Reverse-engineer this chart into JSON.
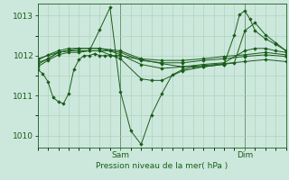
{
  "bg_color": "#cce8dc",
  "grid_color": "#aaccb8",
  "line_color": "#1a5c1a",
  "marker_color": "#1a5c1a",
  "xlabel": "Pression niveau de la mer( hPa )",
  "xlabel_color": "#1a5c1a",
  "tick_color": "#1a5c1a",
  "ylim": [
    1009.7,
    1013.3
  ],
  "yticks": [
    1010,
    1011,
    1012,
    1013
  ],
  "xlim": [
    0,
    48
  ],
  "xtick_positions": [
    16,
    40
  ],
  "xtick_labels": [
    "Sam",
    "Dim"
  ],
  "vlines": [
    16,
    40
  ],
  "series": [
    [
      0,
      1011.65,
      1,
      1011.55,
      2,
      1011.35,
      3,
      1010.95,
      4,
      1010.85,
      5,
      1010.8,
      6,
      1011.05,
      7,
      1011.65,
      8,
      1011.9,
      9,
      1012.0,
      10,
      1012.0,
      11,
      1012.05,
      12,
      1012.0,
      13,
      1012.0,
      14,
      1012.0,
      15,
      1012.0,
      16,
      1012.0,
      20,
      1011.9,
      24,
      1011.8,
      28,
      1011.72,
      32,
      1011.75,
      36,
      1011.8,
      40,
      1011.85,
      44,
      1011.9,
      48,
      1011.85
    ],
    [
      0,
      1011.72,
      2,
      1011.88,
      4,
      1012.02,
      6,
      1012.08,
      8,
      1012.08,
      10,
      1012.12,
      12,
      1012.65,
      14,
      1013.2,
      16,
      1011.1,
      18,
      1010.12,
      20,
      1009.78,
      22,
      1010.52,
      24,
      1011.05,
      26,
      1011.52,
      28,
      1011.65,
      30,
      1011.72,
      32,
      1011.72,
      36,
      1011.78,
      38,
      1012.52,
      39,
      1013.02,
      40,
      1013.12,
      41,
      1012.92,
      42,
      1012.62,
      44,
      1012.42,
      46,
      1012.28,
      48,
      1012.12
    ],
    [
      0,
      1011.78,
      2,
      1011.92,
      4,
      1012.08,
      6,
      1012.12,
      8,
      1012.12,
      10,
      1012.12,
      12,
      1012.12,
      14,
      1012.02,
      16,
      1011.92,
      20,
      1011.42,
      22,
      1011.38,
      24,
      1011.38,
      28,
      1011.62,
      32,
      1011.72,
      36,
      1011.78,
      38,
      1011.82,
      40,
      1012.62,
      42,
      1012.82,
      44,
      1012.52,
      46,
      1012.32,
      48,
      1012.12
    ],
    [
      0,
      1011.82,
      2,
      1011.92,
      4,
      1012.08,
      6,
      1012.12,
      8,
      1012.12,
      10,
      1012.12,
      12,
      1012.12,
      14,
      1012.12,
      16,
      1012.02,
      20,
      1011.78,
      24,
      1011.68,
      28,
      1011.72,
      32,
      1011.78,
      36,
      1011.82,
      40,
      1012.12,
      42,
      1012.18,
      44,
      1012.18,
      46,
      1012.12,
      48,
      1012.08
    ],
    [
      0,
      1011.88,
      2,
      1012.02,
      4,
      1012.12,
      6,
      1012.18,
      8,
      1012.18,
      10,
      1012.18,
      12,
      1012.18,
      14,
      1012.12,
      16,
      1012.08,
      20,
      1011.88,
      24,
      1011.82,
      28,
      1011.82,
      32,
      1011.88,
      36,
      1011.92,
      40,
      1011.98,
      44,
      1012.02,
      48,
      1011.98
    ],
    [
      0,
      1011.92,
      4,
      1012.08,
      8,
      1012.18,
      12,
      1012.18,
      16,
      1012.12,
      20,
      1011.92,
      24,
      1011.88,
      28,
      1011.88,
      32,
      1011.92,
      36,
      1011.98,
      40,
      1012.02,
      44,
      1012.08,
      48,
      1012.02
    ]
  ]
}
